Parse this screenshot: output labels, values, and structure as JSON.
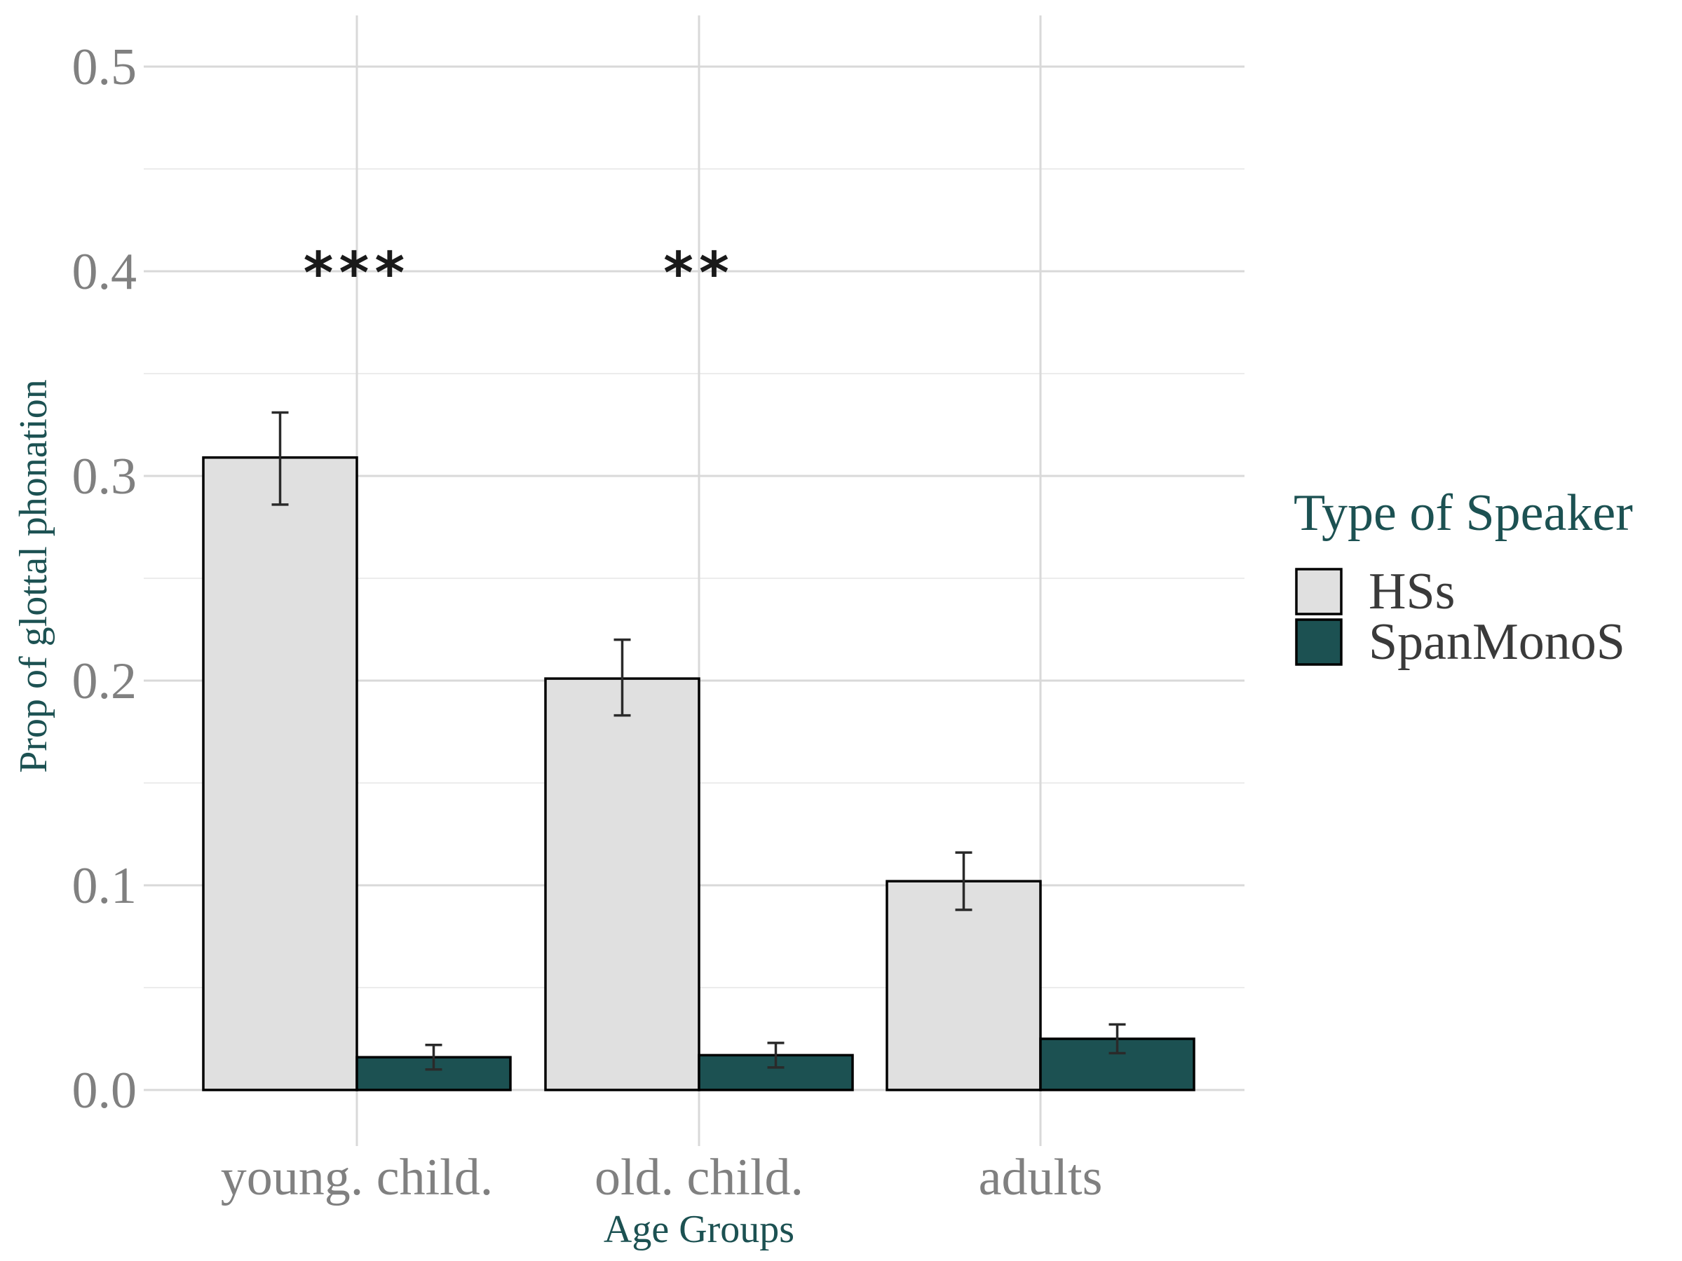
{
  "chart_data": {
    "type": "bar",
    "categories": [
      "young. child.",
      "old. child.",
      "adults"
    ],
    "series": [
      {
        "name": "HSs",
        "color": "#e0e0e0",
        "values": [
          0.309,
          0.201,
          0.102
        ],
        "error_low": [
          0.286,
          0.183,
          0.088
        ],
        "error_high": [
          0.331,
          0.22,
          0.116
        ]
      },
      {
        "name": "SpanMonoS",
        "color": "#1c5152",
        "values": [
          0.016,
          0.017,
          0.025
        ],
        "error_low": [
          0.01,
          0.011,
          0.018
        ],
        "error_high": [
          0.022,
          0.023,
          0.032
        ]
      }
    ],
    "significance": [
      "***",
      "**",
      ""
    ],
    "xlabel": "Age Groups",
    "ylabel": "Prop of glottal phonation",
    "ylim": [
      0,
      0.5
    ],
    "yticks": [
      0.0,
      0.1,
      0.2,
      0.3,
      0.4,
      0.5
    ],
    "ytick_labels": [
      "0.0",
      "0.1",
      "0.2",
      "0.3",
      "0.4",
      "0.5"
    ],
    "grid": true,
    "legend": {
      "title": "Type of Speaker",
      "position": "right"
    }
  }
}
